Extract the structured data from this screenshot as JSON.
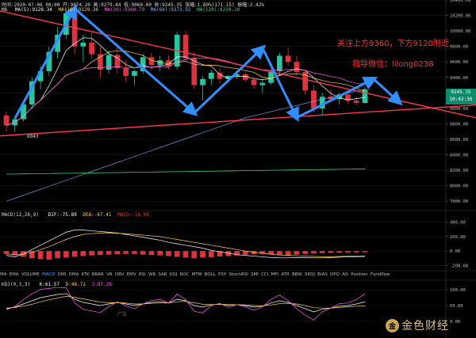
{
  "header": {
    "row1": "时间:2020-07-06 08:00  开:9074.20  高:9279.44  低:9060.00  收:9245.35  涨幅:1.89%(171.15)  振幅:2.42%",
    "ma_label": "MA",
    "ma5": "MA(5):9128.34",
    "ma10": "MA(10):9129.36",
    "ma30": "MA(30):9360.79",
    "ma60": "MA(60):9373.92",
    "ma120": "MA(120):8210.10",
    "macd_label": "MACD(12,26,9)",
    "dif": "DIF:-75.89",
    "dea": "DEA:-67.41",
    "macd": "MACD:-16.96",
    "kdj_label": "KDJ(9,3,3)",
    "k": "K:61.57",
    "d": "D:48.72",
    "j": "J:87.28"
  },
  "annotations": {
    "line1": "关注上方9360，下方9120附近",
    "line2": "指导微信：lilong0238",
    "low_label": "8843",
    "ad_label": "广告"
  },
  "price_tag": {
    "price": "9245.35",
    "time": "10:42:36"
  },
  "indicator_tabs": [
    "MA",
    "EMA",
    "VOLUME",
    "MACD",
    "DMI",
    "DMA",
    "KTK",
    "BRAR",
    "VR",
    "OBV",
    "EMV",
    "RSI",
    "WR",
    "SAR",
    "KDJ",
    "ROC",
    "MTM",
    "BOLL",
    "PSY",
    "StochRSI",
    "SMI",
    "CCI",
    "MFI",
    "ATR",
    "BBW",
    "SKDJ",
    "BIAS",
    "DPO",
    "AO",
    "Position",
    "Fundflow"
  ],
  "active_tab": "MACD",
  "logo": {
    "symbol": "金",
    "name": "金色财经"
  },
  "colors": {
    "up": "#22c9a0",
    "down": "#e0323e",
    "trend": "#ff3650",
    "arrow": "#2e8fff",
    "ma5": "#ffffff",
    "ma10": "#ffd24a",
    "ma30": "#ff5cf0",
    "ma60": "#7fb0ff",
    "ma120": "#3ecf7a",
    "dif": "#ffffff",
    "dea": "#ffd24a",
    "kdj_k": "#ffffff",
    "kdj_d": "#ffd24a",
    "kdj_j": "#ff5cf0"
  },
  "chart_data": [
    {
      "type": "candlestick",
      "title": "",
      "ylim": [
        7700,
        10400
      ],
      "yticks": [
        7800,
        8000,
        8200,
        8400,
        8600,
        8800,
        9000,
        9200,
        9400,
        9600,
        9800,
        10000,
        10200,
        10400
      ],
      "candles": [
        [
          8910,
          8960,
          8700,
          8780
        ],
        [
          8780,
          8900,
          8700,
          8860
        ],
        [
          8860,
          9100,
          8830,
          9050
        ],
        [
          9050,
          9400,
          8990,
          9350
        ],
        [
          9350,
          9550,
          9250,
          9480
        ],
        [
          9480,
          9800,
          9420,
          9730
        ],
        [
          9730,
          10050,
          9650,
          9950
        ],
        [
          9950,
          10290,
          9900,
          10230
        ],
        [
          10230,
          10250,
          9700,
          9800
        ],
        [
          9800,
          9950,
          9600,
          9850
        ],
        [
          9850,
          9980,
          9640,
          9700
        ],
        [
          9700,
          9800,
          9400,
          9500
        ],
        [
          9500,
          9750,
          9450,
          9690
        ],
        [
          9690,
          9800,
          9450,
          9520
        ],
        [
          9520,
          9620,
          9350,
          9420
        ],
        [
          9420,
          9500,
          9300,
          9480
        ],
        [
          9480,
          9700,
          9450,
          9660
        ],
        [
          9660,
          9720,
          9500,
          9560
        ],
        [
          9560,
          9680,
          9480,
          9620
        ],
        [
          9620,
          9680,
          9500,
          9540
        ],
        [
          9540,
          9990,
          9500,
          9950
        ],
        [
          9950,
          10000,
          9600,
          9650
        ],
        [
          9650,
          9720,
          9250,
          9300
        ],
        [
          9300,
          9420,
          9100,
          9380
        ],
        [
          9380,
          9500,
          9300,
          9460
        ],
        [
          9460,
          9520,
          9320,
          9380
        ],
        [
          9380,
          9430,
          9330,
          9420
        ],
        [
          9420,
          9470,
          9380,
          9440
        ],
        [
          9440,
          9480,
          9350,
          9370
        ],
        [
          9370,
          9410,
          9250,
          9300
        ],
        [
          9300,
          9380,
          9200,
          9330
        ],
        [
          9330,
          9500,
          9310,
          9480
        ],
        [
          9480,
          9720,
          9450,
          9680
        ],
        [
          9680,
          9790,
          9550,
          9600
        ],
        [
          9600,
          9680,
          9420,
          9470
        ],
        [
          9470,
          9500,
          9180,
          9230
        ],
        [
          9230,
          9300,
          8950,
          9000
        ],
        [
          9000,
          9200,
          8900,
          9150
        ],
        [
          9150,
          9250,
          9080,
          9120
        ],
        [
          9120,
          9200,
          9050,
          9180
        ],
        [
          9180,
          9200,
          9060,
          9100
        ],
        [
          9100,
          9150,
          9040,
          9070
        ],
        [
          9070,
          9280,
          9060,
          9245
        ]
      ],
      "trendlines": [
        [
          10240,
          9200
        ],
        [
          8650,
          8950
        ]
      ],
      "arrows": [
        [
          8870,
          10290
        ],
        [
          10290,
          8940
        ],
        [
          8940,
          9780
        ],
        [
          9780,
          8880
        ],
        [
          8880,
          9380
        ],
        [
          9380,
          9080
        ]
      ]
    },
    {
      "type": "bar",
      "title": "MACD",
      "ylim": [
        -250,
        450
      ],
      "yticks": [
        -200,
        0,
        200,
        400
      ],
      "dif": [
        -60,
        -80,
        -40,
        20,
        80,
        140,
        200,
        260,
        290,
        290,
        280,
        270,
        260,
        250,
        230,
        210,
        190,
        170,
        150,
        120,
        100,
        80,
        60,
        40,
        10,
        -10,
        -30,
        -50,
        -60,
        -70,
        -80,
        -90,
        -95,
        -95,
        -90,
        -90,
        -95,
        -95,
        -90,
        -85,
        -80,
        -78,
        -75.89
      ],
      "dea": [
        -40,
        -50,
        -40,
        -20,
        20,
        60,
        110,
        160,
        200,
        230,
        240,
        250,
        250,
        245,
        240,
        230,
        220,
        210,
        200,
        180,
        160,
        140,
        120,
        100,
        80,
        60,
        40,
        20,
        0,
        -15,
        -30,
        -45,
        -55,
        -60,
        -65,
        -70,
        -75,
        -78,
        -78,
        -75,
        -72,
        -70,
        -67.41
      ],
      "hist": [
        -40,
        -60,
        -80,
        -100,
        -110,
        -120,
        -100,
        -90,
        -80,
        -70,
        -60,
        -55,
        -50,
        -45,
        -40,
        -40,
        -50,
        -55,
        -60,
        -70,
        -80,
        -90,
        -100,
        -90,
        -85,
        -75,
        -70,
        -60,
        -50,
        -45,
        -40,
        -45,
        -55,
        -60,
        -50,
        -40,
        -35,
        -30,
        -25,
        -22,
        -20,
        -18,
        -16.96
      ]
    },
    {
      "type": "line",
      "title": "KDJ",
      "ylim": [
        -10,
        110
      ],
      "yticks": [
        0,
        50,
        100
      ],
      "k": [
        40,
        45,
        55,
        65,
        75,
        80,
        85,
        88,
        70,
        60,
        55,
        50,
        55,
        60,
        55,
        50,
        55,
        60,
        62,
        58,
        70,
        65,
        50,
        45,
        52,
        55,
        50,
        53,
        50,
        45,
        48,
        58,
        65,
        60,
        50,
        40,
        30,
        38,
        42,
        48,
        50,
        55,
        61.57
      ],
      "d": [
        42,
        44,
        48,
        54,
        62,
        68,
        74,
        79,
        76,
        71,
        66,
        61,
        59,
        59,
        58,
        55,
        55,
        57,
        58,
        58,
        62,
        63,
        59,
        54,
        53,
        54,
        53,
        53,
        52,
        50,
        49,
        52,
        56,
        57,
        55,
        50,
        43,
        42,
        42,
        44,
        46,
        48,
        48.72
      ],
      "j": [
        36,
        47,
        69,
        87,
        101,
        104,
        107,
        106,
        58,
        38,
        33,
        28,
        47,
        62,
        49,
        40,
        55,
        66,
        70,
        58,
        86,
        69,
        32,
        27,
        50,
        57,
        44,
        53,
        46,
        35,
        46,
        70,
        83,
        66,
        40,
        20,
        4,
        30,
        42,
        56,
        58,
        69,
        87.28
      ]
    }
  ]
}
